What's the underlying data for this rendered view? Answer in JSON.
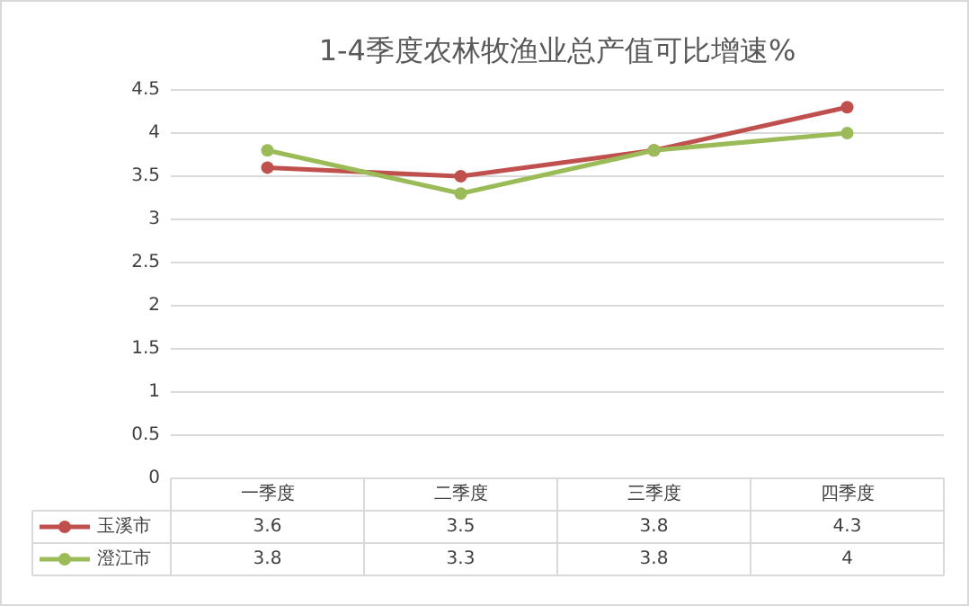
{
  "chart_data": {
    "type": "line",
    "title": "1-4季度农林牧渔业总产值可比增速%",
    "categories": [
      "一季度",
      "二季度",
      "三季度",
      "四季度"
    ],
    "series": [
      {
        "name": "玉溪市",
        "color": "#c0504d",
        "values": [
          3.6,
          3.5,
          3.8,
          4.3
        ]
      },
      {
        "name": "澄江市",
        "color": "#9bbb59",
        "values": [
          3.8,
          3.3,
          3.8,
          4
        ]
      }
    ],
    "ylim": [
      0,
      4.5
    ],
    "yticks": [
      0,
      0.5,
      1,
      1.5,
      2,
      2.5,
      3,
      3.5,
      4,
      4.5
    ],
    "grid": "y",
    "marker": "circle",
    "line_style": "solid",
    "legend": "bottom",
    "data_labels": true
  }
}
